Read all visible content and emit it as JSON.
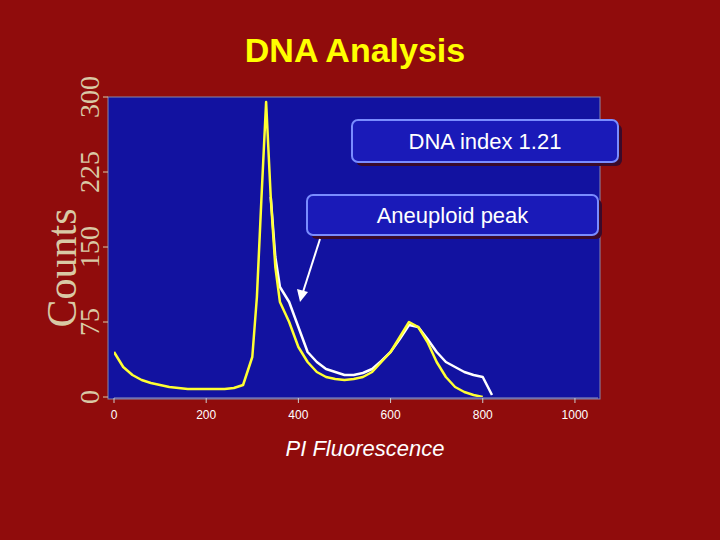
{
  "chart_data": {
    "type": "line",
    "title": "DNA Analysis",
    "x_label": "PI Fluorescence",
    "y_label": "Counts",
    "x": [
      0,
      20,
      40,
      60,
      80,
      100,
      120,
      140,
      160,
      180,
      200,
      220,
      240,
      260,
      280,
      300,
      310,
      320,
      330,
      340,
      350,
      360,
      380,
      400,
      420,
      440,
      460,
      480,
      500,
      520,
      540,
      560,
      580,
      600,
      620,
      640,
      660,
      680,
      700,
      720,
      740,
      760,
      780,
      800,
      820,
      840,
      860,
      880,
      900,
      920,
      940,
      960,
      980,
      1000
    ],
    "series": [
      {
        "color": "#ffff33",
        "values": [
          45,
          30,
          22,
          17,
          14,
          12,
          10,
          9,
          8,
          8,
          8,
          8,
          8,
          9,
          12,
          40,
          100,
          200,
          295,
          200,
          130,
          95,
          75,
          50,
          35,
          25,
          20,
          18,
          17,
          18,
          20,
          25,
          35,
          45,
          60,
          75,
          70,
          55,
          35,
          20,
          10,
          5,
          2,
          0,
          null,
          null,
          null,
          null,
          null,
          null,
          null,
          null,
          null,
          null
        ]
      },
      {
        "color": "#ffffff",
        "values": [
          null,
          null,
          null,
          null,
          null,
          null,
          null,
          null,
          null,
          null,
          null,
          null,
          null,
          null,
          null,
          null,
          null,
          null,
          null,
          200,
          140,
          110,
          95,
          70,
          45,
          35,
          28,
          25,
          22,
          22,
          24,
          28,
          36,
          45,
          58,
          72,
          70,
          58,
          45,
          35,
          30,
          25,
          22,
          20,
          2,
          null,
          null,
          null,
          null,
          null,
          null,
          null,
          null,
          null
        ]
      }
    ],
    "xlim": [
      0,
      1050
    ],
    "xticks": [
      0,
      200,
      400,
      600,
      800,
      1000
    ],
    "ylim": [
      0,
      300
    ],
    "yticks": [
      0,
      75,
      150,
      225,
      300
    ],
    "grid": false,
    "annotations": [
      {
        "text": "DNA index 1.21"
      },
      {
        "text": "Aneuploid peak"
      }
    ]
  }
}
